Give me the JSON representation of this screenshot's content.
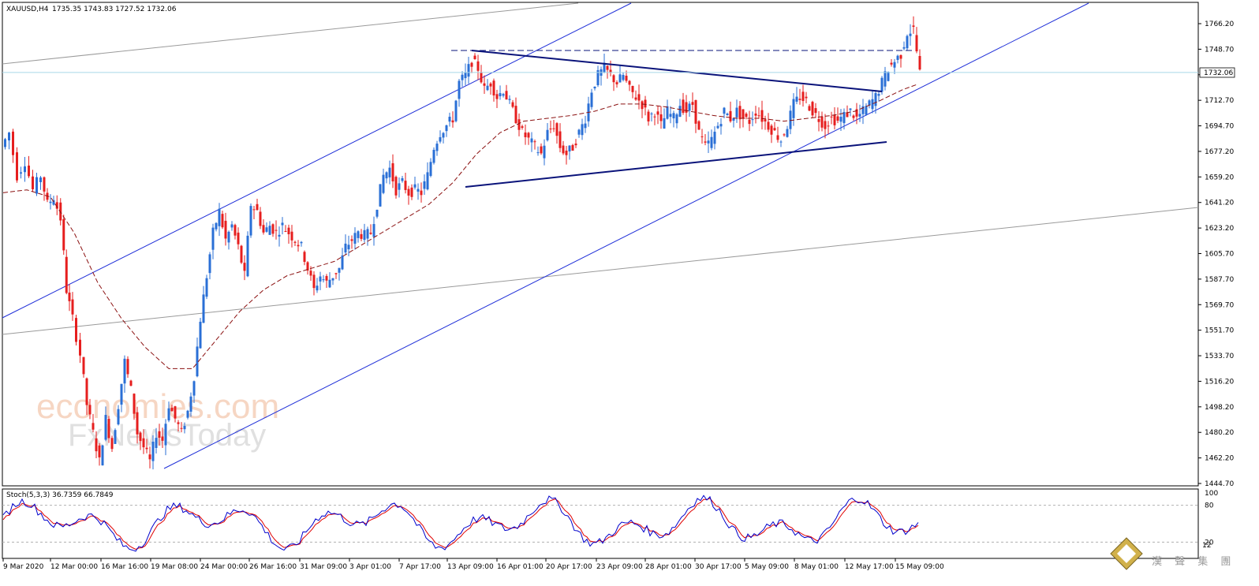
{
  "chart_data": {
    "type": "candlestick",
    "symbol_header": "XAUUSD,H4",
    "ohlc_readout": "1735.35 1743.83 1727.52 1732.06",
    "current_price_label": "1732.06",
    "y_ticks": [
      "1766.20",
      "1748.70",
      "1730.70",
      "1712.70",
      "1694.70",
      "1677.20",
      "1659.20",
      "1641.20",
      "1623.20",
      "1605.70",
      "1587.70",
      "1569.70",
      "1551.70",
      "1533.70",
      "1516.20",
      "1498.20",
      "1480.20",
      "1462.20",
      "1444.70"
    ],
    "ylim": [
      1444.7,
      1766.2
    ],
    "x_ticks": [
      "9 Mar 2020",
      "12 Mar 00:00",
      "16 Mar 16:00",
      "19 Mar 08:00",
      "24 Mar 00:00",
      "26 Mar 16:00",
      "31 Mar 09:00",
      "3 Apr 01:00",
      "7 Apr 17:00",
      "13 Apr 09:00",
      "16 Apr 01:00",
      "20 Apr 17:00",
      "23 Apr 09:00",
      "28 Apr 01:00",
      "30 Apr 17:00",
      "5 May 09:00",
      "8 May 01:00",
      "12 May 17:00",
      "15 May 09:00"
    ],
    "price_path": [
      [
        0,
        1680
      ],
      [
        10,
        1690
      ],
      [
        20,
        1660
      ],
      [
        30,
        1670
      ],
      [
        40,
        1650
      ],
      [
        50,
        1660
      ],
      [
        58,
        1640
      ],
      [
        66,
        1645
      ],
      [
        75,
        1630
      ],
      [
        82,
        1580
      ],
      [
        90,
        1560
      ],
      [
        100,
        1535
      ],
      [
        108,
        1500
      ],
      [
        116,
        1480
      ],
      [
        124,
        1460
      ],
      [
        132,
        1490
      ],
      [
        140,
        1470
      ],
      [
        148,
        1500
      ],
      [
        156,
        1530
      ],
      [
        164,
        1510
      ],
      [
        172,
        1480
      ],
      [
        180,
        1470
      ],
      [
        188,
        1460
      ],
      [
        196,
        1480
      ],
      [
        204,
        1475
      ],
      [
        212,
        1500
      ],
      [
        220,
        1490
      ],
      [
        228,
        1480
      ],
      [
        236,
        1495
      ],
      [
        244,
        1520
      ],
      [
        252,
        1560
      ],
      [
        260,
        1590
      ],
      [
        268,
        1620
      ],
      [
        276,
        1635
      ],
      [
        284,
        1615
      ],
      [
        292,
        1625
      ],
      [
        300,
        1610
      ],
      [
        308,
        1590
      ],
      [
        316,
        1640
      ],
      [
        324,
        1635
      ],
      [
        332,
        1620
      ],
      [
        340,
        1625
      ],
      [
        348,
        1620
      ],
      [
        356,
        1625
      ],
      [
        364,
        1620
      ],
      [
        372,
        1615
      ],
      [
        380,
        1610
      ],
      [
        388,
        1595
      ],
      [
        396,
        1580
      ],
      [
        404,
        1590
      ],
      [
        412,
        1585
      ],
      [
        420,
        1590
      ],
      [
        428,
        1595
      ],
      [
        436,
        1610
      ],
      [
        444,
        1615
      ],
      [
        452,
        1620
      ],
      [
        460,
        1618
      ],
      [
        468,
        1620
      ],
      [
        476,
        1640
      ],
      [
        484,
        1660
      ],
      [
        492,
        1665
      ],
      [
        500,
        1650
      ],
      [
        508,
        1655
      ],
      [
        516,
        1648
      ],
      [
        524,
        1650
      ],
      [
        532,
        1648
      ],
      [
        540,
        1660
      ],
      [
        548,
        1680
      ],
      [
        556,
        1690
      ],
      [
        564,
        1695
      ],
      [
        572,
        1700
      ],
      [
        580,
        1725
      ],
      [
        588,
        1730
      ],
      [
        596,
        1740
      ],
      [
        604,
        1735
      ],
      [
        612,
        1720
      ],
      [
        620,
        1725
      ],
      [
        628,
        1715
      ],
      [
        636,
        1720
      ],
      [
        644,
        1710
      ],
      [
        652,
        1700
      ],
      [
        660,
        1690
      ],
      [
        668,
        1685
      ],
      [
        676,
        1680
      ],
      [
        684,
        1675
      ],
      [
        692,
        1690
      ],
      [
        700,
        1695
      ],
      [
        708,
        1680
      ],
      [
        716,
        1675
      ],
      [
        724,
        1680
      ],
      [
        732,
        1690
      ],
      [
        740,
        1700
      ],
      [
        748,
        1720
      ],
      [
        756,
        1730
      ],
      [
        764,
        1735
      ],
      [
        772,
        1730
      ],
      [
        780,
        1725
      ],
      [
        788,
        1730
      ],
      [
        796,
        1720
      ],
      [
        804,
        1715
      ],
      [
        812,
        1710
      ],
      [
        820,
        1700
      ],
      [
        828,
        1705
      ],
      [
        836,
        1695
      ],
      [
        844,
        1705
      ],
      [
        852,
        1700
      ],
      [
        860,
        1710
      ],
      [
        868,
        1705
      ],
      [
        876,
        1710
      ],
      [
        884,
        1690
      ],
      [
        892,
        1680
      ],
      [
        900,
        1685
      ],
      [
        908,
        1695
      ],
      [
        916,
        1705
      ],
      [
        924,
        1700
      ],
      [
        932,
        1705
      ],
      [
        940,
        1700
      ],
      [
        948,
        1698
      ],
      [
        956,
        1705
      ],
      [
        964,
        1700
      ],
      [
        972,
        1695
      ],
      [
        980,
        1690
      ],
      [
        988,
        1685
      ],
      [
        996,
        1695
      ],
      [
        1004,
        1710
      ],
      [
        1012,
        1715
      ],
      [
        1020,
        1712
      ],
      [
        1028,
        1705
      ],
      [
        1036,
        1700
      ],
      [
        1044,
        1695
      ],
      [
        1052,
        1700
      ],
      [
        1060,
        1698
      ],
      [
        1068,
        1702
      ],
      [
        1076,
        1705
      ],
      [
        1084,
        1700
      ],
      [
        1092,
        1705
      ],
      [
        1100,
        1710
      ],
      [
        1108,
        1715
      ],
      [
        1116,
        1725
      ],
      [
        1124,
        1735
      ],
      [
        1132,
        1740
      ],
      [
        1140,
        1745
      ],
      [
        1148,
        1760
      ],
      [
        1156,
        1762
      ],
      [
        1164,
        1732
      ]
    ],
    "ma_path": [
      [
        0,
        1648
      ],
      [
        30,
        1650
      ],
      [
        60,
        1645
      ],
      [
        90,
        1620
      ],
      [
        120,
        1585
      ],
      [
        150,
        1560
      ],
      [
        180,
        1540
      ],
      [
        210,
        1525
      ],
      [
        240,
        1525
      ],
      [
        270,
        1545
      ],
      [
        300,
        1565
      ],
      [
        330,
        1580
      ],
      [
        360,
        1590
      ],
      [
        390,
        1595
      ],
      [
        420,
        1600
      ],
      [
        450,
        1610
      ],
      [
        480,
        1620
      ],
      [
        510,
        1630
      ],
      [
        540,
        1640
      ],
      [
        570,
        1655
      ],
      [
        600,
        1675
      ],
      [
        630,
        1690
      ],
      [
        660,
        1698
      ],
      [
        690,
        1700
      ],
      [
        720,
        1702
      ],
      [
        750,
        1705
      ],
      [
        780,
        1710
      ],
      [
        810,
        1710
      ],
      [
        840,
        1708
      ],
      [
        870,
        1705
      ],
      [
        900,
        1702
      ],
      [
        930,
        1700
      ],
      [
        960,
        1700
      ],
      [
        990,
        1698
      ],
      [
        1020,
        1700
      ],
      [
        1050,
        1702
      ],
      [
        1080,
        1705
      ],
      [
        1110,
        1712
      ],
      [
        1140,
        1720
      ],
      [
        1160,
        1724
      ]
    ],
    "indicator": {
      "label": "Stoch(5,3,3) 36.7359 66.7849",
      "levels": [
        "100",
        "80",
        "20"
      ],
      "main_color": "#0000cc",
      "signal_color": "#e00000"
    },
    "colors": {
      "bull": "#2a6fd6",
      "bear": "#e61e1e",
      "channel": "#1f2fd8",
      "triangle": "#0a137a",
      "ma": "#8b1010",
      "grey_channel": "#9a9a9a",
      "price_line": "#a7d7e8"
    },
    "watermark": {
      "line1": "economies.com",
      "line2": "FxNewsToday"
    },
    "brand_text": "漢 聲 集 團",
    "brand_badge": "12"
  }
}
